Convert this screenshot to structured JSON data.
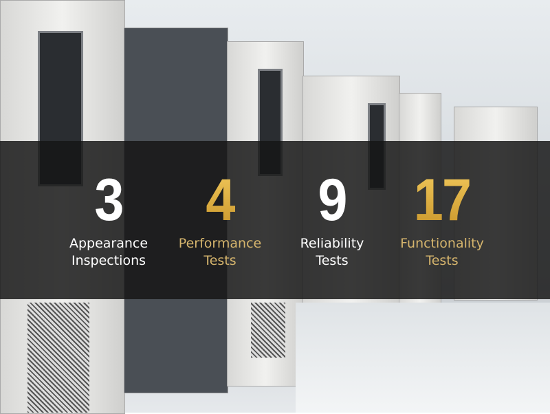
{
  "colors": {
    "gold": "#e0b048",
    "gold_label": "#d6b56d",
    "white": "#ffffff",
    "band": "#161616"
  },
  "stats": [
    {
      "number": "3",
      "line1": "Appearance",
      "line2": "Inspections",
      "color": "white"
    },
    {
      "number": "4",
      "line1": "Performance",
      "line2": "Tests",
      "color": "gold"
    },
    {
      "number": "9",
      "line1": "Reliability",
      "line2": "Tests",
      "color": "white"
    },
    {
      "number": "17",
      "line1": "Functionality",
      "line2": "Tests",
      "color": "gold"
    }
  ]
}
